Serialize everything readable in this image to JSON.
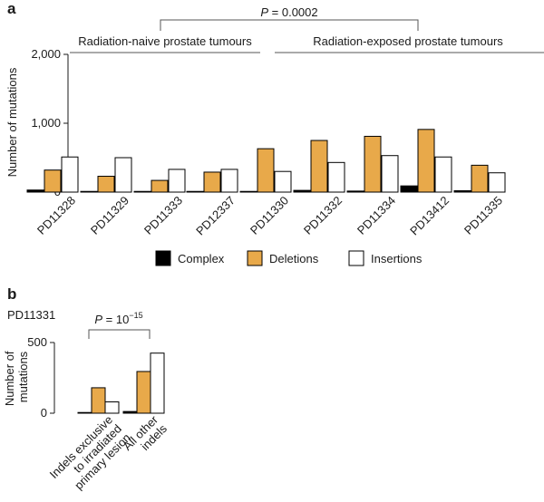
{
  "colors": {
    "Complex": "#000000",
    "Deletions": "#E8A94A",
    "Insertions": "#FFFFFF",
    "axis": "#1a1a1a",
    "bracket": "#555555"
  },
  "legend_placement": "bottom-center",
  "chart_data": [
    {
      "panel": "a",
      "type": "bar",
      "ylabel": "Number of mutations",
      "ylim": [
        0,
        2000
      ],
      "yticks": [
        0,
        1000,
        2000
      ],
      "ytick_labels": [
        "0",
        "1,000",
        "2,000"
      ],
      "categories": [
        "PD11328",
        "PD11329",
        "PD11333",
        "PD12337",
        "PD11330",
        "PD11332",
        "PD11334",
        "PD13412",
        "PD11335"
      ],
      "series": [
        {
          "name": "Complex",
          "values": [
            30,
            10,
            10,
            10,
            10,
            25,
            15,
            90,
            20
          ]
        },
        {
          "name": "Deletions",
          "values": [
            320,
            230,
            170,
            290,
            630,
            750,
            810,
            910,
            390
          ]
        },
        {
          "name": "Insertions",
          "values": [
            510,
            500,
            330,
            330,
            300,
            430,
            530,
            510,
            280
          ]
        }
      ],
      "groups": [
        {
          "label": "Radiation-naive prostate tumours",
          "from": 0,
          "to": 3
        },
        {
          "label": "Radiation-exposed prostate tumours",
          "from": 4,
          "to": 8
        }
      ],
      "comparison": {
        "label_prefix": "P",
        "label_value": "= 0.0002"
      },
      "grid": false
    },
    {
      "panel": "b",
      "type": "bar",
      "sample": "PD11331",
      "ylabel_lines": [
        "Number of",
        "mutations"
      ],
      "ylim": [
        0,
        500
      ],
      "yticks": [
        0,
        500
      ],
      "ytick_labels": [
        "0",
        "500"
      ],
      "categories": [
        {
          "lines": [
            "Indels exclusive",
            "to irradiated",
            "primary lesion"
          ]
        },
        {
          "lines": [
            "All other",
            "indels"
          ]
        }
      ],
      "series": [
        {
          "name": "Complex",
          "values": [
            5,
            12
          ]
        },
        {
          "name": "Deletions",
          "values": [
            180,
            295
          ]
        },
        {
          "name": "Insertions",
          "values": [
            80,
            425
          ]
        }
      ],
      "comparison": {
        "label_prefix": "P",
        "label_eq": "= 10",
        "label_exp": "−15"
      },
      "grid": false
    }
  ],
  "legend": [
    "Complex",
    "Deletions",
    "Insertions"
  ]
}
